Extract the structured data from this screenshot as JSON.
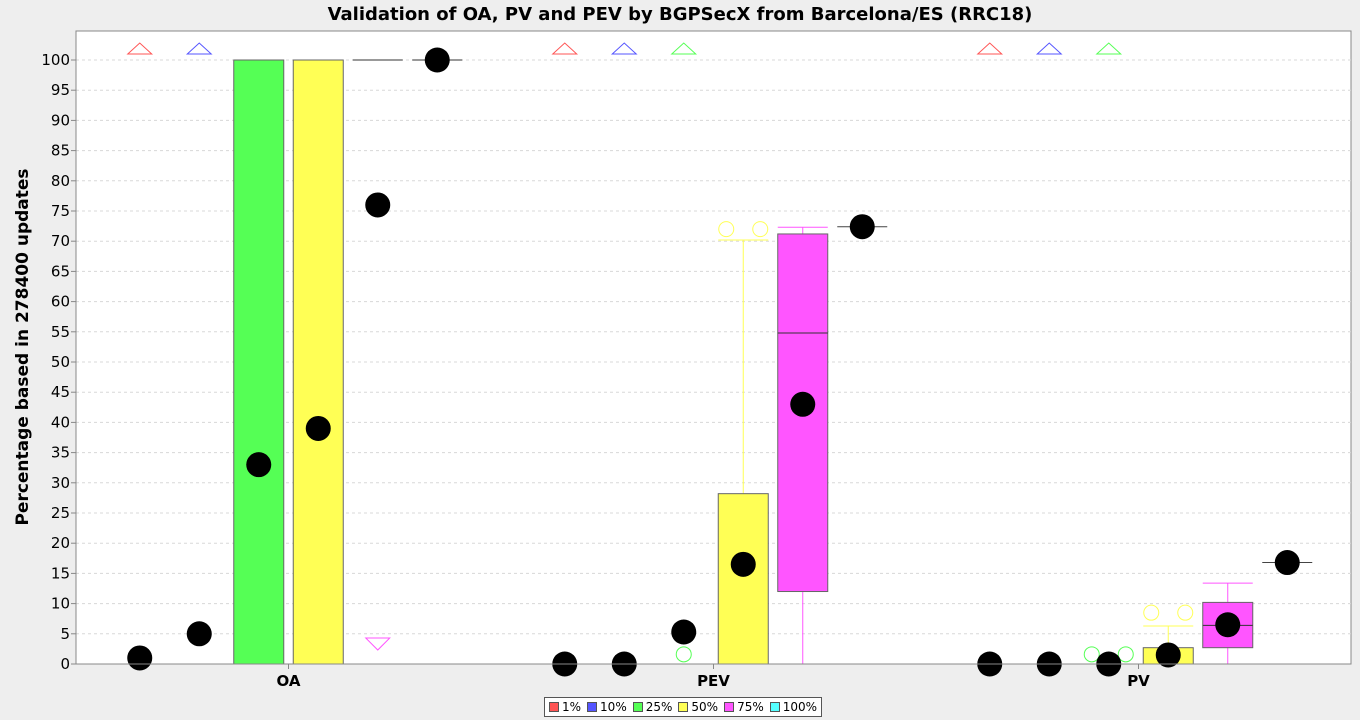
{
  "chart_data": {
    "type": "box",
    "title": "Validation of OA, PV and PEV by BGPSecX from Barcelona/ES (RRC18)",
    "xlabel": "",
    "ylabel": "Percentage based in 278400 updates",
    "ylim": [
      0,
      100
    ],
    "yticks": [
      0,
      5,
      10,
      15,
      20,
      25,
      30,
      35,
      40,
      45,
      50,
      55,
      60,
      65,
      70,
      75,
      80,
      85,
      90,
      95,
      100
    ],
    "categories": [
      "OA",
      "PEV",
      "PV"
    ],
    "grid": true,
    "legend_position": "bottom",
    "series": [
      {
        "name": "1%",
        "color": "#ff5555",
        "box_color": "#ff5555",
        "values": [
          {
            "q1": 0,
            "median": 0,
            "q3": 0,
            "whisker_low": 0,
            "whisker_high": 0,
            "mean": 1.0,
            "outliers": [],
            "above_max": true,
            "below_min": false
          },
          {
            "q1": 0,
            "median": 0,
            "q3": 0,
            "whisker_low": 0,
            "whisker_high": 0,
            "mean": 0,
            "outliers": [],
            "above_max": true,
            "below_min": false
          },
          {
            "q1": 0,
            "median": 0,
            "q3": 0,
            "whisker_low": 0,
            "whisker_high": 0,
            "mean": 0,
            "outliers": [],
            "above_max": true,
            "below_min": false
          }
        ]
      },
      {
        "name": "10%",
        "color": "#5555ff",
        "box_color": "#5555ff",
        "values": [
          {
            "q1": 0,
            "median": 0,
            "q3": 0,
            "whisker_low": 0,
            "whisker_high": 0,
            "mean": 5.0,
            "outliers": [],
            "above_max": true,
            "below_min": false
          },
          {
            "q1": 0,
            "median": 0,
            "q3": 0,
            "whisker_low": 0,
            "whisker_high": 0,
            "mean": 0,
            "outliers": [],
            "above_max": true,
            "below_min": false
          },
          {
            "q1": 0,
            "median": 0,
            "q3": 0,
            "whisker_low": 0,
            "whisker_high": 0,
            "mean": 0,
            "outliers": [],
            "above_max": true,
            "below_min": false
          }
        ]
      },
      {
        "name": "25%",
        "color": "#55ff55",
        "box_color": "#55ff55",
        "values": [
          {
            "q1": 0,
            "median": 0,
            "q3": 100,
            "whisker_low": 0,
            "whisker_high": 100,
            "mean": 33.0,
            "outliers": [],
            "above_max": false,
            "below_min": false
          },
          {
            "q1": 0,
            "median": 0,
            "q3": 0,
            "whisker_low": 0,
            "whisker_high": 0,
            "mean": 5.3,
            "outliers": [
              1.6
            ],
            "above_max": true,
            "below_min": false
          },
          {
            "q1": 0,
            "median": 0,
            "q3": 0,
            "whisker_low": 0,
            "whisker_high": 0,
            "mean": 0,
            "outliers": [
              1.6,
              1.6
            ],
            "above_max": true,
            "below_min": false
          }
        ]
      },
      {
        "name": "50%",
        "color": "#ffff55",
        "box_color": "#ffff55",
        "values": [
          {
            "q1": 0,
            "median": 0,
            "q3": 100,
            "whisker_low": 0,
            "whisker_high": 100,
            "mean": 39.0,
            "outliers": [],
            "above_max": false,
            "below_min": false
          },
          {
            "q1": 0,
            "median": 0,
            "q3": 28.2,
            "whisker_low": 0,
            "whisker_high": 70.2,
            "mean": 16.5,
            "outliers": [
              72,
              72
            ],
            "above_max": false,
            "below_min": false
          },
          {
            "q1": 0,
            "median": 0,
            "q3": 2.7,
            "whisker_low": 0,
            "whisker_high": 6.3,
            "mean": 1.5,
            "outliers": [
              8.5,
              8.5
            ],
            "above_max": false,
            "below_min": false
          }
        ]
      },
      {
        "name": "75%",
        "color": "#ff55ff",
        "box_color": "#ff55ff",
        "values": [
          {
            "q1": 100,
            "median": 100,
            "q3": 100,
            "whisker_low": 100,
            "whisker_high": 100,
            "mean": 76.0,
            "outliers": [],
            "above_max": false,
            "below_min": true
          },
          {
            "q1": 12.0,
            "median": 54.8,
            "q3": 71.2,
            "whisker_low": 0,
            "whisker_high": 72.3,
            "mean": 43.0,
            "outliers": [],
            "above_max": false,
            "below_min": false
          },
          {
            "q1": 2.7,
            "median": 6.4,
            "q3": 10.2,
            "whisker_low": 0,
            "whisker_high": 13.4,
            "mean": 6.5,
            "outliers": [],
            "above_max": false,
            "below_min": false
          }
        ]
      },
      {
        "name": "100%",
        "color": "#55ffff",
        "box_color": "#55ffff",
        "values": [
          {
            "q1": 100,
            "median": 100,
            "q3": 100,
            "whisker_low": 100,
            "whisker_high": 100,
            "mean": 100.0,
            "outliers": [],
            "above_max": false,
            "below_min": false
          },
          {
            "q1": 72.4,
            "median": 72.4,
            "q3": 72.4,
            "whisker_low": 72.4,
            "whisker_high": 72.4,
            "mean": 72.4,
            "outliers": [],
            "above_max": false,
            "below_min": false
          },
          {
            "q1": 16.8,
            "median": 16.8,
            "q3": 16.8,
            "whisker_low": 16.8,
            "whisker_high": 16.8,
            "mean": 16.8,
            "outliers": [],
            "above_max": false,
            "below_min": false
          }
        ]
      }
    ]
  }
}
